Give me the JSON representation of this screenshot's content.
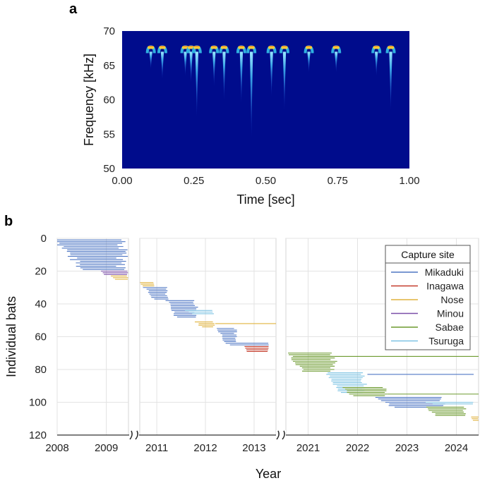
{
  "chart_data": [
    {
      "panel": "a",
      "type": "heatmap",
      "xlabel": "Time [sec]",
      "ylabel": "Frequency [kHz]",
      "xlim": [
        0,
        1
      ],
      "ylim": [
        50,
        70
      ],
      "xticks": [
        "0.00",
        "0.25",
        "0.50",
        "0.75",
        "1.00"
      ],
      "yticks": [
        "50",
        "55",
        "60",
        "65",
        "70"
      ],
      "background_color": "#000c8c",
      "pulses": [
        {
          "t": 0.1,
          "f_max": 67.6,
          "f_min": 64.5
        },
        {
          "t": 0.14,
          "f_max": 67.6,
          "f_min": 63.0
        },
        {
          "t": 0.22,
          "f_max": 67.6,
          "f_min": 63.5
        },
        {
          "t": 0.24,
          "f_max": 67.6,
          "f_min": 62.5
        },
        {
          "t": 0.26,
          "f_max": 67.6,
          "f_min": 57.5
        },
        {
          "t": 0.32,
          "f_max": 67.6,
          "f_min": 62.0
        },
        {
          "t": 0.355,
          "f_max": 67.6,
          "f_min": 60.0
        },
        {
          "t": 0.415,
          "f_max": 67.6,
          "f_min": 59.5
        },
        {
          "t": 0.45,
          "f_max": 67.6,
          "f_min": 54.5
        },
        {
          "t": 0.52,
          "f_max": 67.6,
          "f_min": 60.5
        },
        {
          "t": 0.565,
          "f_max": 67.6,
          "f_min": 58.5
        },
        {
          "t": 0.65,
          "f_max": 67.6,
          "f_min": 64.0
        },
        {
          "t": 0.745,
          "f_max": 67.6,
          "f_min": 64.0
        },
        {
          "t": 0.885,
          "f_max": 67.6,
          "f_min": 63.5
        },
        {
          "t": 0.935,
          "f_max": 67.6,
          "f_min": 58.5
        }
      ]
    },
    {
      "panel": "b",
      "type": "line",
      "xlabel": "Year",
      "ylabel": "Individual bats",
      "ylim": [
        0,
        120
      ],
      "yticks": [
        "0",
        "20",
        "40",
        "60",
        "80",
        "100",
        "120"
      ],
      "y_reversed": true,
      "segments": [
        {
          "xlim": [
            2008,
            2009.45
          ],
          "xticks": [
            "2008",
            "2009"
          ]
        },
        {
          "xlim": [
            2010.65,
            2013.45
          ],
          "xticks": [
            "2011",
            "2012",
            "2013"
          ]
        },
        {
          "xlim": [
            2020.55,
            2024.45
          ],
          "xticks": [
            "2021",
            "2022",
            "2023",
            "2024"
          ]
        }
      ],
      "legend": {
        "title": "Capture site",
        "placement": "top-right",
        "entries": [
          {
            "name": "Mikaduki",
            "color": "#4f77c4"
          },
          {
            "name": "Inagawa",
            "color": "#c43b2b"
          },
          {
            "name": "Nose",
            "color": "#e0b33f"
          },
          {
            "name": "Minou",
            "color": "#7b4fa8"
          },
          {
            "name": "Sabae",
            "color": "#6c9a2e"
          },
          {
            "name": "Tsuruga",
            "color": "#7ec3e3"
          }
        ]
      },
      "groups": [
        {
          "site": "Mikaduki",
          "y0": 1,
          "y1": 19,
          "start": 2008.0,
          "end": 2009.45,
          "spread": 0.85
        },
        {
          "site": "Minou",
          "y0": 20,
          "y1": 22,
          "start": 2008.9,
          "end": 2009.45,
          "spread": 0.1
        },
        {
          "site": "Nose",
          "y0": 23,
          "y1": 25,
          "start": 2009.1,
          "end": 2009.45,
          "spread": 0.12
        },
        {
          "site": "Nose",
          "y0": 27,
          "y1": 29,
          "start": 2010.65,
          "end": 2010.95,
          "spread": 0.1
        },
        {
          "site": "Mikaduki",
          "y0": 30,
          "y1": 37,
          "start": 2010.75,
          "end": 2011.25,
          "spread": 0.3
        },
        {
          "site": "Mikaduki",
          "y0": 38,
          "y1": 48,
          "start": 2011.2,
          "end": 2011.85,
          "spread": 0.35
        },
        {
          "site": "Tsuruga",
          "y0": 44,
          "y1": 46,
          "start": 2011.6,
          "end": 2012.2,
          "spread": 0.2
        },
        {
          "site": "Nose",
          "y0": 51,
          "y1": 54,
          "start": 2011.8,
          "end": 2012.2,
          "spread": 0.2
        },
        {
          "site": "Nose",
          "y0": 52,
          "y1": 52,
          "start": 2012.2,
          "end": 2013.45,
          "spread": 0.0
        },
        {
          "site": "Mikaduki",
          "y0": 55,
          "y1": 63,
          "start": 2012.25,
          "end": 2012.65,
          "spread": 0.25
        },
        {
          "site": "Mikaduki",
          "y0": 64,
          "y1": 65,
          "start": 2012.4,
          "end": 2013.3,
          "spread": 0.2
        },
        {
          "site": "Inagawa",
          "y0": 66,
          "y1": 69,
          "start": 2012.8,
          "end": 2013.3,
          "spread": 0.1
        },
        {
          "site": "Sabae",
          "y0": 70,
          "y1": 81,
          "start": 2020.6,
          "end": 2021.6,
          "spread": 0.55
        },
        {
          "site": "Sabae",
          "y0": 72,
          "y1": 72,
          "start": 2021.0,
          "end": 2024.45,
          "spread": 0.0
        },
        {
          "site": "Tsuruga",
          "y0": 82,
          "y1": 94,
          "start": 2021.35,
          "end": 2022.2,
          "spread": 0.45
        },
        {
          "site": "Mikaduki",
          "y0": 83,
          "y1": 83,
          "start": 2022.2,
          "end": 2024.35,
          "spread": 0.0
        },
        {
          "site": "Sabae",
          "y0": 91,
          "y1": 96,
          "start": 2021.7,
          "end": 2022.6,
          "spread": 0.3
        },
        {
          "site": "Sabae",
          "y0": 95,
          "y1": 95,
          "start": 2022.6,
          "end": 2024.45,
          "spread": 0.0
        },
        {
          "site": "Mikaduki",
          "y0": 97,
          "y1": 103,
          "start": 2022.4,
          "end": 2023.8,
          "spread": 0.5
        },
        {
          "site": "Tsuruga",
          "y0": 100,
          "y1": 101,
          "start": 2023.4,
          "end": 2024.35,
          "spread": 0.2
        },
        {
          "site": "Sabae",
          "y0": 103,
          "y1": 108,
          "start": 2023.4,
          "end": 2024.2,
          "spread": 0.3
        },
        {
          "site": "Nose",
          "y0": 109,
          "y1": 111,
          "start": 2024.3,
          "end": 2024.45,
          "spread": 0.05
        }
      ]
    }
  ],
  "panel_labels": {
    "a": "a",
    "b": "b"
  }
}
